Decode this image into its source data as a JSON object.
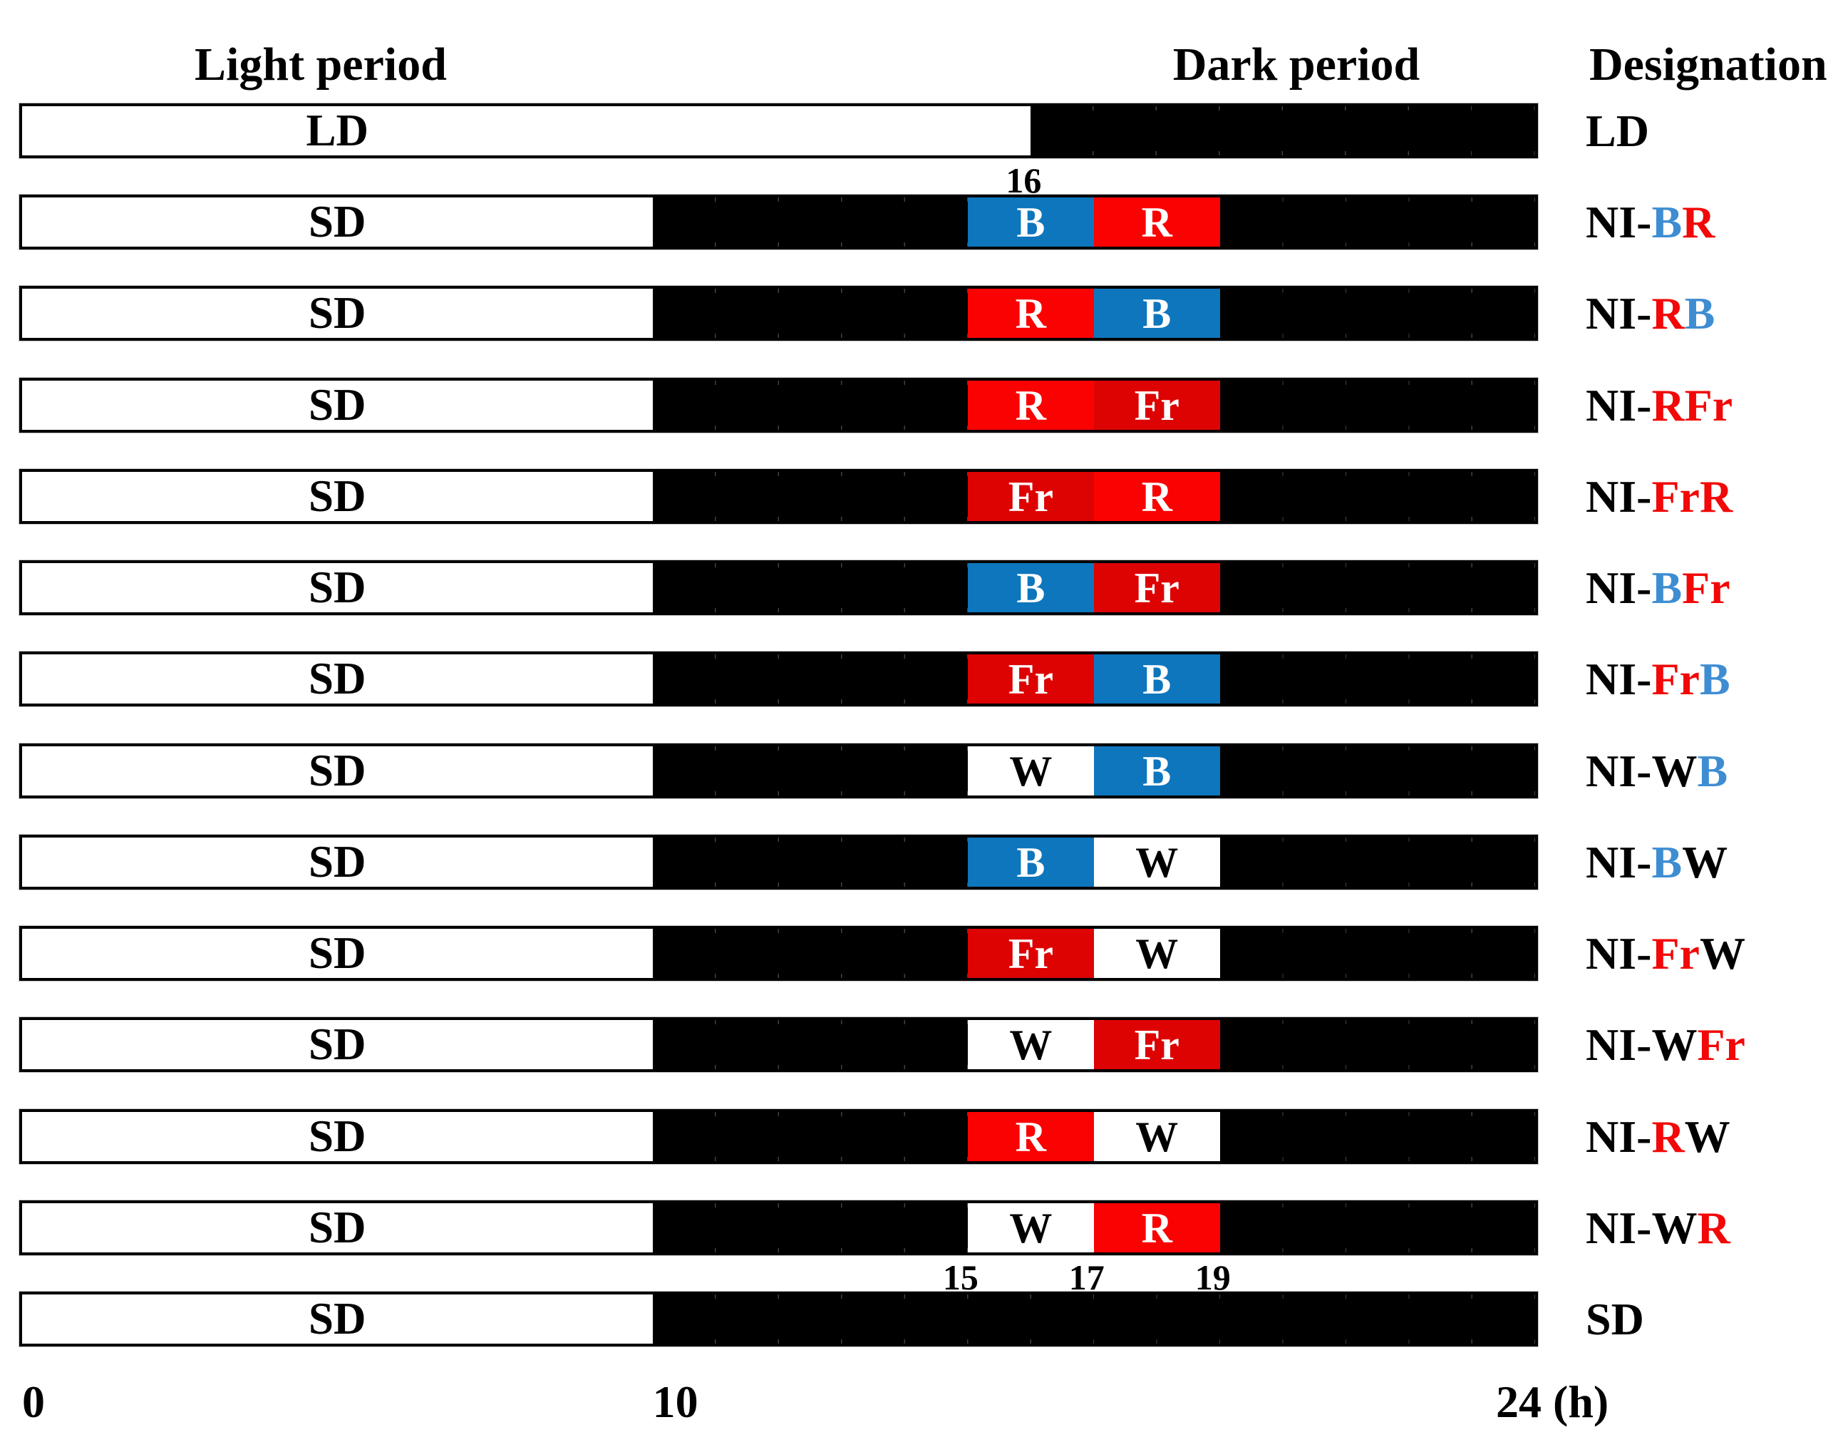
{
  "figure": {
    "headers": {
      "light": "Light period",
      "dark": "Dark period",
      "designation": "Designation"
    },
    "axis": {
      "total_hours": 24,
      "bottom_ticks": [
        {
          "hour": 0,
          "label": "0",
          "anchor": "mark"
        },
        {
          "hour": 10,
          "label": "10",
          "anchor": "mark"
        },
        {
          "hour": 24,
          "label": "24 (h)",
          "anchor": "mark-offset"
        }
      ],
      "hour_markers": [
        {
          "hour": 16,
          "label": "16",
          "below_row": 0
        },
        {
          "hour": 15,
          "label": "15",
          "below_row": 12
        },
        {
          "hour": 17,
          "label": "17",
          "below_row": 12
        },
        {
          "hour": 19,
          "label": "19",
          "below_row": 12
        }
      ]
    },
    "colors": {
      "bar_blue": "#0e76bc",
      "bar_red": "#fa0202",
      "bar_far_red": "#dd0303",
      "bar_black": "#000000",
      "bar_white": "#ffffff",
      "text_blue": "#3e8dd2",
      "text_red": "#f20808",
      "text_black": "#000000"
    },
    "rows": [
      {
        "bar_label": "LD",
        "light_end": 16,
        "segments": [],
        "designation": [
          {
            "t": "LD",
            "c": "black"
          }
        ]
      },
      {
        "bar_label": "SD",
        "light_end": 10,
        "segments": [
          {
            "start": 15,
            "end": 17,
            "fill": "blue",
            "letter": "B"
          },
          {
            "start": 17,
            "end": 19,
            "fill": "red",
            "letter": "R"
          }
        ],
        "designation": [
          {
            "t": "NI-",
            "c": "black"
          },
          {
            "t": "B",
            "c": "blue"
          },
          {
            "t": "R",
            "c": "red"
          }
        ]
      },
      {
        "bar_label": "SD",
        "light_end": 10,
        "segments": [
          {
            "start": 15,
            "end": 17,
            "fill": "red",
            "letter": "R"
          },
          {
            "start": 17,
            "end": 19,
            "fill": "blue",
            "letter": "B"
          }
        ],
        "designation": [
          {
            "t": "NI-",
            "c": "black"
          },
          {
            "t": "R",
            "c": "red"
          },
          {
            "t": "B",
            "c": "blue"
          }
        ]
      },
      {
        "bar_label": "SD",
        "light_end": 10,
        "segments": [
          {
            "start": 15,
            "end": 17,
            "fill": "red",
            "letter": "R"
          },
          {
            "start": 17,
            "end": 19,
            "fill": "far_red",
            "letter": "Fr"
          }
        ],
        "designation": [
          {
            "t": "NI-",
            "c": "black"
          },
          {
            "t": "R",
            "c": "red"
          },
          {
            "t": "Fr",
            "c": "red"
          }
        ]
      },
      {
        "bar_label": "SD",
        "light_end": 10,
        "segments": [
          {
            "start": 15,
            "end": 17,
            "fill": "far_red",
            "letter": "Fr"
          },
          {
            "start": 17,
            "end": 19,
            "fill": "red",
            "letter": "R"
          }
        ],
        "designation": [
          {
            "t": "NI-",
            "c": "black"
          },
          {
            "t": "Fr",
            "c": "red"
          },
          {
            "t": "R",
            "c": "red"
          }
        ]
      },
      {
        "bar_label": "SD",
        "light_end": 10,
        "segments": [
          {
            "start": 15,
            "end": 17,
            "fill": "blue",
            "letter": "B"
          },
          {
            "start": 17,
            "end": 19,
            "fill": "far_red",
            "letter": "Fr"
          }
        ],
        "designation": [
          {
            "t": "NI-",
            "c": "black"
          },
          {
            "t": "B",
            "c": "blue"
          },
          {
            "t": "Fr",
            "c": "red"
          }
        ]
      },
      {
        "bar_label": "SD",
        "light_end": 10,
        "segments": [
          {
            "start": 15,
            "end": 17,
            "fill": "far_red",
            "letter": "Fr"
          },
          {
            "start": 17,
            "end": 19,
            "fill": "blue",
            "letter": "B"
          }
        ],
        "designation": [
          {
            "t": "NI-",
            "c": "black"
          },
          {
            "t": "Fr",
            "c": "red"
          },
          {
            "t": "B",
            "c": "blue"
          }
        ]
      },
      {
        "bar_label": "SD",
        "light_end": 10,
        "segments": [
          {
            "start": 15,
            "end": 17,
            "fill": "white",
            "letter": "W"
          },
          {
            "start": 17,
            "end": 19,
            "fill": "blue",
            "letter": "B"
          }
        ],
        "designation": [
          {
            "t": "NI-",
            "c": "black"
          },
          {
            "t": "W",
            "c": "black"
          },
          {
            "t": "B",
            "c": "blue"
          }
        ]
      },
      {
        "bar_label": "SD",
        "light_end": 10,
        "segments": [
          {
            "start": 15,
            "end": 17,
            "fill": "blue",
            "letter": "B"
          },
          {
            "start": 17,
            "end": 19,
            "fill": "white",
            "letter": "W"
          }
        ],
        "designation": [
          {
            "t": "NI-",
            "c": "black"
          },
          {
            "t": "B",
            "c": "blue"
          },
          {
            "t": "W",
            "c": "black"
          }
        ]
      },
      {
        "bar_label": "SD",
        "light_end": 10,
        "segments": [
          {
            "start": 15,
            "end": 17,
            "fill": "far_red",
            "letter": "Fr"
          },
          {
            "start": 17,
            "end": 19,
            "fill": "white",
            "letter": "W"
          }
        ],
        "designation": [
          {
            "t": "NI-",
            "c": "black"
          },
          {
            "t": "Fr",
            "c": "red"
          },
          {
            "t": "W",
            "c": "black"
          }
        ]
      },
      {
        "bar_label": "SD",
        "light_end": 10,
        "segments": [
          {
            "start": 15,
            "end": 17,
            "fill": "white",
            "letter": "W"
          },
          {
            "start": 17,
            "end": 19,
            "fill": "far_red",
            "letter": "Fr"
          }
        ],
        "designation": [
          {
            "t": "NI-",
            "c": "black"
          },
          {
            "t": "W",
            "c": "black"
          },
          {
            "t": "Fr",
            "c": "red"
          }
        ]
      },
      {
        "bar_label": "SD",
        "light_end": 10,
        "segments": [
          {
            "start": 15,
            "end": 17,
            "fill": "red",
            "letter": "R"
          },
          {
            "start": 17,
            "end": 19,
            "fill": "white",
            "letter": "W"
          }
        ],
        "designation": [
          {
            "t": "NI-",
            "c": "black"
          },
          {
            "t": "R",
            "c": "red"
          },
          {
            "t": "W",
            "c": "black"
          }
        ]
      },
      {
        "bar_label": "SD",
        "light_end": 10,
        "segments": [
          {
            "start": 15,
            "end": 17,
            "fill": "white",
            "letter": "W"
          },
          {
            "start": 17,
            "end": 19,
            "fill": "red",
            "letter": "R"
          }
        ],
        "designation": [
          {
            "t": "NI-",
            "c": "black"
          },
          {
            "t": "W",
            "c": "black"
          },
          {
            "t": "R",
            "c": "red"
          }
        ]
      },
      {
        "bar_label": "SD",
        "light_end": 10,
        "segments": [],
        "designation": [
          {
            "t": "SD",
            "c": "black"
          }
        ]
      }
    ]
  }
}
